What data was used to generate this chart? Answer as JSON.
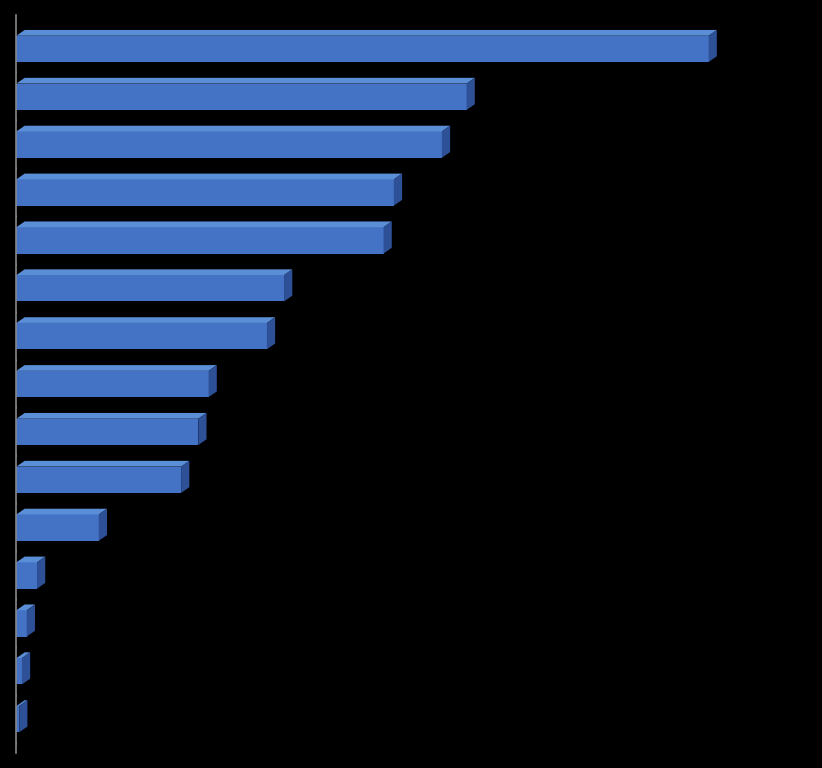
{
  "values": [
    10087,
    6560,
    6200,
    5500,
    5350,
    3900,
    3650,
    2800,
    2650,
    2400,
    1200,
    300,
    150,
    80,
    40
  ],
  "bar_color": "#4472C4",
  "bar_color_top": "#5A8ED6",
  "bar_color_side": "#2E5096",
  "background_color": "#000000",
  "bar_height": 0.55,
  "depth_x": 120,
  "depth_y": 0.12,
  "xlim": [
    0,
    11500
  ],
  "ylim": [
    -0.7,
    14.7
  ],
  "left_spine_color": "#888888"
}
